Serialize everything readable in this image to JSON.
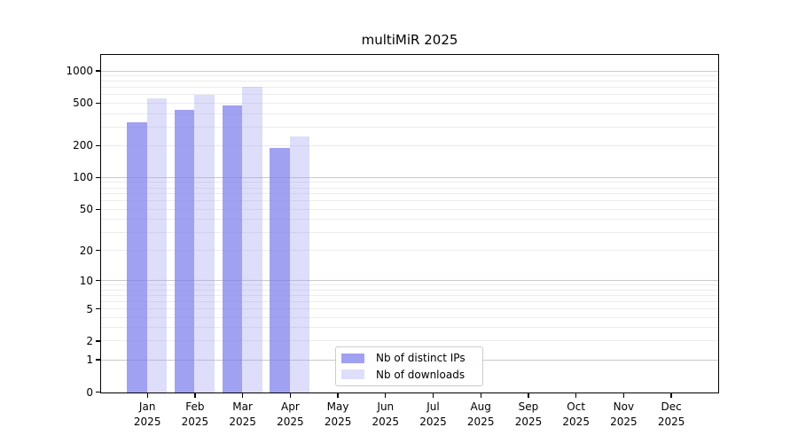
{
  "chart_data": {
    "type": "bar",
    "title": "multiMiR 2025",
    "categories": [
      "Jan",
      "Feb",
      "Mar",
      "Apr",
      "May",
      "Jun",
      "Jul",
      "Aug",
      "Sep",
      "Oct",
      "Nov",
      "Dec"
    ],
    "year_label": "2025",
    "series": [
      {
        "name": "Nb of distinct IPs",
        "color": "#7d7debb8",
        "values": [
          333,
          440,
          478,
          192,
          null,
          null,
          null,
          null,
          null,
          null,
          null,
          null
        ]
      },
      {
        "name": "Nb of downloads",
        "color": "#a0a0f059",
        "values": [
          556,
          600,
          715,
          247,
          null,
          null,
          null,
          null,
          null,
          null,
          null,
          null
        ]
      }
    ],
    "yscale": "log10(value+1)",
    "yticks": [
      0,
      1,
      2,
      5,
      10,
      20,
      50,
      100,
      200,
      500,
      1000
    ],
    "ylim": [
      0,
      1400
    ],
    "grid": "horizontal-major-and-minor",
    "legend_position": "bottom-center",
    "colors": {
      "grid_major": "#c9c9c9",
      "grid_minor": "#ececec",
      "axis_frame": "#000000",
      "legend_border": "#cccccc",
      "background": "#ffffff"
    }
  }
}
